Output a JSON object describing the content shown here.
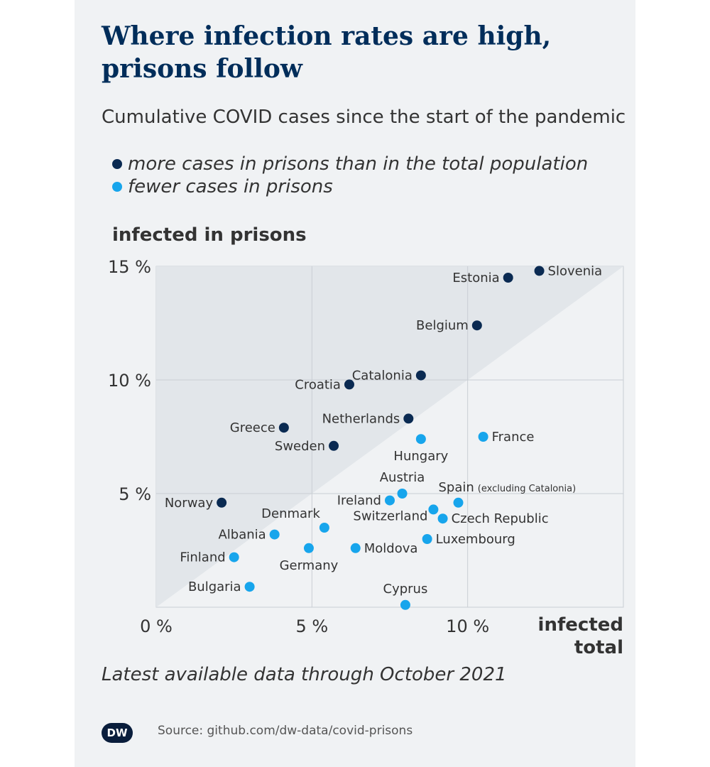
{
  "title": "Where infection rates are high, prisons follow",
  "subtitle": "Cumulative COVID cases since the start of the pandemic",
  "legend": {
    "more": "more cases in prisons than in the total population",
    "fewer": "fewer cases in prisons"
  },
  "footnote": "Latest available data through October 2021",
  "source": "Source: github.com/dw-data/covid-prisons",
  "logo": "DW",
  "colors": {
    "dark": "#0a2a52",
    "light": "#17a5ec",
    "text": "#333333"
  },
  "chart_data": {
    "type": "scatter",
    "title": "Where infection rates are high, prisons follow",
    "subtitle": "Cumulative COVID cases since the start of the pandemic",
    "ylabel": "infected in prisons",
    "xlabel": "infected total",
    "xlim": [
      0,
      15
    ],
    "ylim": [
      0,
      15
    ],
    "x_ticks": [
      0,
      5,
      10
    ],
    "y_ticks": [
      5,
      10,
      15
    ],
    "x_tick_labels": [
      "0 %",
      "5 %",
      "10 %"
    ],
    "y_tick_labels": [
      "5 %",
      "10 %",
      "15 %"
    ],
    "grid": true,
    "legend": "top-left",
    "series": [
      {
        "name": "more cases in prisons than in the total population",
        "color": "#0a2a52",
        "points": [
          {
            "label": "Slovenia",
            "x": 12.3,
            "y": 14.8,
            "side": "right"
          },
          {
            "label": "Estonia",
            "x": 11.3,
            "y": 14.5,
            "side": "left"
          },
          {
            "label": "Belgium",
            "x": 10.3,
            "y": 12.4,
            "side": "left"
          },
          {
            "label": "Catalonia",
            "x": 8.5,
            "y": 10.2,
            "side": "left"
          },
          {
            "label": "Croatia",
            "x": 6.2,
            "y": 9.8,
            "side": "left"
          },
          {
            "label": "Netherlands",
            "x": 8.1,
            "y": 8.3,
            "side": "left"
          },
          {
            "label": "Greece",
            "x": 4.1,
            "y": 7.9,
            "side": "left"
          },
          {
            "label": "Sweden",
            "x": 5.7,
            "y": 7.1,
            "side": "left"
          },
          {
            "label": "Norway",
            "x": 2.1,
            "y": 4.6,
            "side": "left"
          }
        ]
      },
      {
        "name": "fewer cases in prisons",
        "color": "#17a5ec",
        "points": [
          {
            "label": "France",
            "x": 10.5,
            "y": 7.5,
            "side": "right"
          },
          {
            "label": "Hungary",
            "x": 8.5,
            "y": 7.4,
            "side": "below"
          },
          {
            "label": "Austria",
            "x": 7.9,
            "y": 5.0,
            "side": "above"
          },
          {
            "label": "Ireland",
            "x": 7.5,
            "y": 4.7,
            "side": "left"
          },
          {
            "label": "Spain",
            "label_note": "(excluding Catalonia)",
            "x": 9.7,
            "y": 4.6,
            "side": "above-right"
          },
          {
            "label": "Switzerland",
            "x": 8.9,
            "y": 4.3,
            "side": "left-below"
          },
          {
            "label": "Czech Republic",
            "x": 9.2,
            "y": 3.9,
            "side": "right"
          },
          {
            "label": "Denmark",
            "x": 5.4,
            "y": 3.5,
            "side": "above-left"
          },
          {
            "label": "Albania",
            "x": 3.8,
            "y": 3.2,
            "side": "left"
          },
          {
            "label": "Luxembourg",
            "x": 8.7,
            "y": 3.0,
            "side": "right"
          },
          {
            "label": "Germany",
            "x": 4.9,
            "y": 2.6,
            "side": "below"
          },
          {
            "label": "Moldova",
            "x": 6.4,
            "y": 2.6,
            "side": "right"
          },
          {
            "label": "Finland",
            "x": 2.5,
            "y": 2.2,
            "side": "left"
          },
          {
            "label": "Bulgaria",
            "x": 3.0,
            "y": 0.9,
            "side": "left"
          },
          {
            "label": "Cyprus",
            "x": 8.0,
            "y": 0.1,
            "side": "above"
          }
        ]
      }
    ]
  }
}
